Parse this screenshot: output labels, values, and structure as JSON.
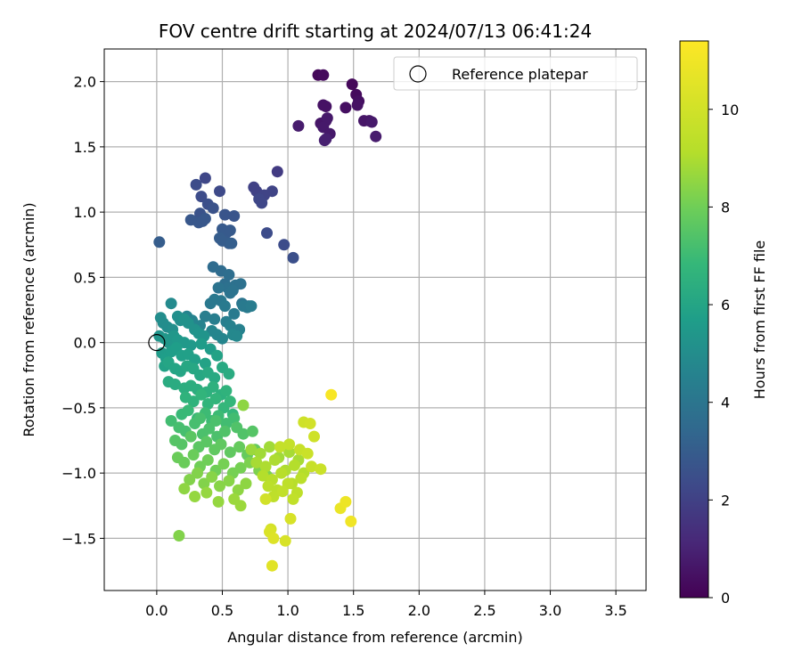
{
  "chart_data": {
    "type": "scatter",
    "title": "FOV centre drift starting at 2024/07/13 06:41:24",
    "xlabel": "Angular distance from reference (arcmin)",
    "ylabel": "Rotation from reference (arcmin)",
    "xlim": [
      -0.4,
      3.73
    ],
    "ylim": [
      -1.9,
      2.25
    ],
    "xticks": [
      0.0,
      0.5,
      1.0,
      1.5,
      2.0,
      2.5,
      3.0,
      3.5
    ],
    "xtick_labels": [
      "0.0",
      "0.5",
      "1.0",
      "1.5",
      "2.0",
      "2.5",
      "3.0",
      "3.5"
    ],
    "yticks": [
      -1.5,
      -1.0,
      -0.5,
      0.0,
      0.5,
      1.0,
      1.5,
      2.0
    ],
    "ytick_labels": [
      "−1.5",
      "−1.0",
      "−0.5",
      "0.0",
      "0.5",
      "1.0",
      "1.5",
      "2.0"
    ],
    "grid": true,
    "colormap": "viridis",
    "colorbar": {
      "label": "Hours from first FF file",
      "range": [
        0,
        11.4
      ],
      "ticks": [
        0,
        2,
        4,
        6,
        8,
        10
      ],
      "tick_labels": [
        "0",
        "2",
        "4",
        "6",
        "8",
        "10"
      ]
    },
    "legend": {
      "position": "top-right",
      "entries": [
        {
          "label": "Reference platepar",
          "marker": "open-circle"
        }
      ]
    },
    "reference_point": {
      "x": 0.0,
      "y": 0.0,
      "label": "Reference platepar"
    },
    "series": [
      {
        "x": [
          1.23,
          1.27,
          1.49,
          1.52,
          1.54,
          1.44,
          1.27,
          1.29,
          1.53,
          1.25,
          1.29,
          1.3,
          1.27,
          1.32,
          1.58,
          1.62,
          1.64,
          1.67,
          1.08,
          1.29,
          1.28
        ],
        "y": [
          2.05,
          2.05,
          1.98,
          1.9,
          1.85,
          1.8,
          1.82,
          1.81,
          1.82,
          1.68,
          1.7,
          1.72,
          1.65,
          1.6,
          1.7,
          1.7,
          1.69,
          1.58,
          1.66,
          1.56,
          1.55
        ],
        "hours": [
          0.2,
          0.3,
          0.2,
          0.3,
          0.4,
          0.4,
          0.5,
          0.5,
          0.5,
          0.6,
          0.6,
          0.7,
          0.7,
          0.7,
          0.6,
          0.6,
          0.7,
          0.8,
          0.8,
          0.9,
          0.9
        ]
      },
      {
        "x": [
          0.92,
          0.37,
          0.3,
          0.48,
          0.74,
          0.76,
          0.82,
          0.88,
          0.34,
          0.78,
          0.8,
          0.39,
          0.33,
          0.43,
          0.52,
          0.59,
          0.26,
          0.32,
          0.35,
          0.37,
          0.5,
          0.53,
          0.56,
          0.48,
          0.55,
          0.02,
          0.5,
          0.57,
          0.84,
          0.97,
          1.04
        ],
        "y": [
          1.31,
          1.26,
          1.21,
          1.16,
          1.19,
          1.16,
          1.13,
          1.16,
          1.12,
          1.1,
          1.07,
          1.06,
          0.99,
          1.03,
          0.98,
          0.97,
          0.94,
          0.92,
          0.93,
          0.95,
          0.87,
          0.84,
          0.86,
          0.8,
          0.76,
          0.77,
          0.78,
          0.76,
          0.84,
          0.75,
          0.65
        ],
        "hours": [
          1.8,
          2.2,
          2.4,
          2.3,
          2.0,
          2.0,
          2.1,
          2.1,
          2.4,
          2.2,
          2.2,
          2.5,
          2.6,
          2.6,
          2.7,
          2.7,
          2.8,
          2.8,
          2.8,
          2.8,
          2.9,
          2.9,
          2.9,
          3.0,
          3.0,
          3.0,
          3.0,
          3.1,
          2.4,
          2.4,
          2.5
        ]
      },
      {
        "x": [
          0.43,
          0.49,
          0.55,
          0.52,
          0.54,
          0.6,
          0.64,
          0.47,
          0.56,
          0.58,
          0.65,
          0.7,
          0.41,
          0.44,
          0.49,
          0.52,
          0.59,
          0.66,
          0.69,
          0.72,
          0.37,
          0.44,
          0.53,
          0.56,
          0.63,
          0.23,
          0.27,
          0.33,
          0.42,
          0.46,
          0.5,
          0.58,
          0.61
        ],
        "y": [
          0.58,
          0.55,
          0.52,
          0.45,
          0.42,
          0.44,
          0.45,
          0.42,
          0.38,
          0.4,
          0.3,
          0.28,
          0.3,
          0.33,
          0.32,
          0.28,
          0.22,
          0.28,
          0.27,
          0.28,
          0.2,
          0.18,
          0.16,
          0.13,
          0.1,
          0.2,
          0.17,
          0.13,
          0.09,
          0.06,
          0.03,
          0.06,
          0.05
        ],
        "hours": [
          3.6,
          3.6,
          3.7,
          3.7,
          3.8,
          3.8,
          3.8,
          3.9,
          3.9,
          3.9,
          4.0,
          4.0,
          4.1,
          4.1,
          4.1,
          4.2,
          4.2,
          4.2,
          4.2,
          4.3,
          4.4,
          4.4,
          4.4,
          4.5,
          4.5,
          4.6,
          4.6,
          4.6,
          4.7,
          4.7,
          4.7,
          4.8,
          4.8
        ]
      },
      {
        "x": [
          0.11,
          0.03,
          0.05,
          0.08,
          0.12,
          0.16,
          0.18,
          0.21,
          0.24,
          0.29,
          0.32,
          0.36,
          0.02,
          0.06,
          0.09,
          0.13,
          0.16,
          0.21,
          0.26,
          0.34,
          0.41,
          0.04,
          0.07,
          0.11,
          0.15,
          0.19,
          0.24,
          0.29,
          0.37,
          0.46,
          0.06,
          0.09,
          0.14,
          0.18,
          0.23,
          0.28,
          0.33,
          0.39,
          0.44,
          0.5,
          0.55,
          0.09,
          0.14,
          0.21,
          0.26,
          0.31,
          0.38,
          0.43,
          0.49,
          0.53
        ],
        "y": [
          0.3,
          0.19,
          0.15,
          0.12,
          0.1,
          0.2,
          0.17,
          0.18,
          0.15,
          0.1,
          0.07,
          0.05,
          0.05,
          0.03,
          0.0,
          0.05,
          0.02,
          0.0,
          -0.02,
          -0.01,
          -0.05,
          -0.08,
          -0.12,
          -0.07,
          -0.04,
          -0.1,
          -0.09,
          -0.13,
          -0.16,
          -0.1,
          -0.18,
          -0.15,
          -0.2,
          -0.22,
          -0.18,
          -0.2,
          -0.25,
          -0.23,
          -0.27,
          -0.19,
          -0.24,
          -0.3,
          -0.32,
          -0.35,
          -0.33,
          -0.36,
          -0.38,
          -0.34,
          -0.4,
          -0.37
        ],
        "hours": [
          4.9,
          5.0,
          5.0,
          5.0,
          5.1,
          5.1,
          5.1,
          5.2,
          5.2,
          5.2,
          5.3,
          5.3,
          5.3,
          5.4,
          5.4,
          5.4,
          5.5,
          5.5,
          5.5,
          5.6,
          5.6,
          5.6,
          5.7,
          5.7,
          5.7,
          5.8,
          5.8,
          5.8,
          5.9,
          5.9,
          5.9,
          6.0,
          6.0,
          6.0,
          6.1,
          6.1,
          6.1,
          6.2,
          6.2,
          6.2,
          6.3,
          6.3,
          6.3,
          6.4,
          6.4,
          6.4,
          6.5,
          6.5,
          6.5,
          6.6
        ]
      },
      {
        "x": [
          0.22,
          0.28,
          0.34,
          0.39,
          0.45,
          0.51,
          0.56,
          0.58,
          0.19,
          0.24,
          0.31,
          0.37,
          0.42,
          0.47,
          0.53,
          0.59,
          0.11,
          0.17,
          0.22,
          0.29,
          0.35,
          0.4,
          0.46,
          0.52,
          0.61,
          0.66,
          0.73,
          0.14,
          0.19,
          0.26,
          0.32,
          0.38,
          0.44,
          0.49,
          0.56,
          0.63,
          0.69,
          0.75,
          0.16,
          0.21,
          0.28,
          0.33,
          0.39,
          0.45,
          0.51,
          0.58,
          0.64,
          0.71,
          0.78,
          0.84,
          0.25,
          0.31,
          0.36,
          0.42,
          0.48,
          0.55,
          0.62,
          0.68,
          0.21,
          0.29,
          0.38,
          0.47,
          0.59,
          0.64,
          0.17,
          0.33,
          0.45,
          0.66
        ],
        "y": [
          -0.42,
          -0.45,
          -0.4,
          -0.47,
          -0.43,
          -0.5,
          -0.45,
          -0.55,
          -0.55,
          -0.52,
          -0.58,
          -0.54,
          -0.6,
          -0.56,
          -0.62,
          -0.58,
          -0.6,
          -0.65,
          -0.68,
          -0.62,
          -0.7,
          -0.66,
          -0.72,
          -0.68,
          -0.65,
          -0.7,
          -0.68,
          -0.75,
          -0.78,
          -0.72,
          -0.8,
          -0.76,
          -0.82,
          -0.78,
          -0.84,
          -0.8,
          -0.86,
          -0.82,
          -0.88,
          -0.92,
          -0.86,
          -0.95,
          -0.9,
          -0.98,
          -0.93,
          -1.0,
          -0.96,
          -0.92,
          -0.98,
          -1.02,
          -1.05,
          -1.0,
          -1.08,
          -1.03,
          -1.1,
          -1.06,
          -1.13,
          -1.08,
          -1.12,
          -1.18,
          -1.15,
          -1.22,
          -1.2,
          -1.25,
          -1.48,
          -0.58,
          -0.6,
          -0.48
        ],
        "hours": [
          6.6,
          6.6,
          6.7,
          6.7,
          6.7,
          6.8,
          6.8,
          6.8,
          6.9,
          6.9,
          6.9,
          7.0,
          7.0,
          7.0,
          7.1,
          7.1,
          7.1,
          7.2,
          7.2,
          7.2,
          7.3,
          7.3,
          7.3,
          7.4,
          7.4,
          7.4,
          7.5,
          7.5,
          7.5,
          7.6,
          7.6,
          7.6,
          7.7,
          7.7,
          7.7,
          7.8,
          7.8,
          7.8,
          7.9,
          7.9,
          7.9,
          8.0,
          8.0,
          8.0,
          8.1,
          8.1,
          8.1,
          8.2,
          8.2,
          8.2,
          8.3,
          8.3,
          8.3,
          8.4,
          8.4,
          8.4,
          8.5,
          8.5,
          8.5,
          8.6,
          8.6,
          8.6,
          8.7,
          8.7,
          8.3,
          7.2,
          7.3,
          8.5
        ]
      },
      {
        "x": [
          0.72,
          0.79,
          0.86,
          0.93,
          1.01,
          1.08,
          0.76,
          0.83,
          0.9,
          0.98,
          1.05,
          1.12,
          0.81,
          0.88,
          0.95,
          1.03,
          1.1,
          0.85,
          0.92,
          1.0,
          1.07,
          0.89,
          0.96,
          1.04,
          0.94,
          1.01,
          1.09,
          1.18,
          1.25,
          1.15,
          1.2,
          1.12,
          1.17
        ],
        "y": [
          -0.82,
          -0.85,
          -0.8,
          -0.88,
          -0.84,
          -0.9,
          -0.92,
          -0.95,
          -0.9,
          -0.98,
          -0.94,
          -1.0,
          -1.02,
          -1.05,
          -1.0,
          -1.08,
          -1.04,
          -1.1,
          -1.13,
          -1.08,
          -1.15,
          -1.18,
          -1.14,
          -1.2,
          -0.8,
          -0.78,
          -0.82,
          -0.95,
          -0.97,
          -0.85,
          -0.72,
          -0.61,
          -0.62
        ],
        "hours": [
          8.7,
          8.8,
          8.8,
          8.8,
          8.9,
          8.9,
          8.9,
          9.0,
          9.0,
          9.0,
          9.1,
          9.1,
          9.1,
          9.2,
          9.2,
          9.2,
          9.3,
          9.3,
          9.3,
          9.4,
          9.4,
          9.4,
          9.5,
          9.5,
          9.6,
          9.6,
          9.7,
          9.7,
          9.8,
          9.8,
          9.9,
          9.9,
          10.0
        ]
      },
      {
        "x": [
          0.83,
          0.87,
          0.98,
          1.02,
          0.86,
          0.89,
          0.88,
          1.4,
          1.44,
          1.48,
          1.33
        ],
        "y": [
          -1.2,
          -1.43,
          -1.52,
          -1.35,
          -1.45,
          -1.5,
          -1.71,
          -1.27,
          -1.22,
          -1.37,
          -0.4
        ],
        "hours": [
          10.0,
          10.1,
          10.2,
          10.2,
          10.3,
          10.4,
          10.5,
          10.8,
          10.9,
          11.0,
          11.2
        ]
      }
    ]
  }
}
